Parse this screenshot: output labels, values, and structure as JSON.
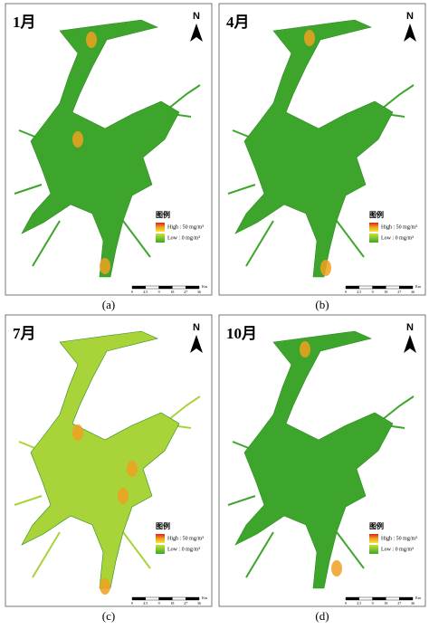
{
  "panels": [
    {
      "month": "1月",
      "label": "(a)"
    },
    {
      "month": "4月",
      "label": "(b)"
    },
    {
      "month": "7月",
      "label": "(c)"
    },
    {
      "month": "10月",
      "label": "(d)"
    }
  ],
  "legend": {
    "title": "图例",
    "high": "High : 50 mg/m³",
    "low": "Low : 0 mg/m³"
  },
  "north": "N",
  "scale_bar": {
    "ticks": [
      "0",
      "4.5",
      "9",
      "18",
      "27",
      "36"
    ],
    "unit": "Km"
  }
}
